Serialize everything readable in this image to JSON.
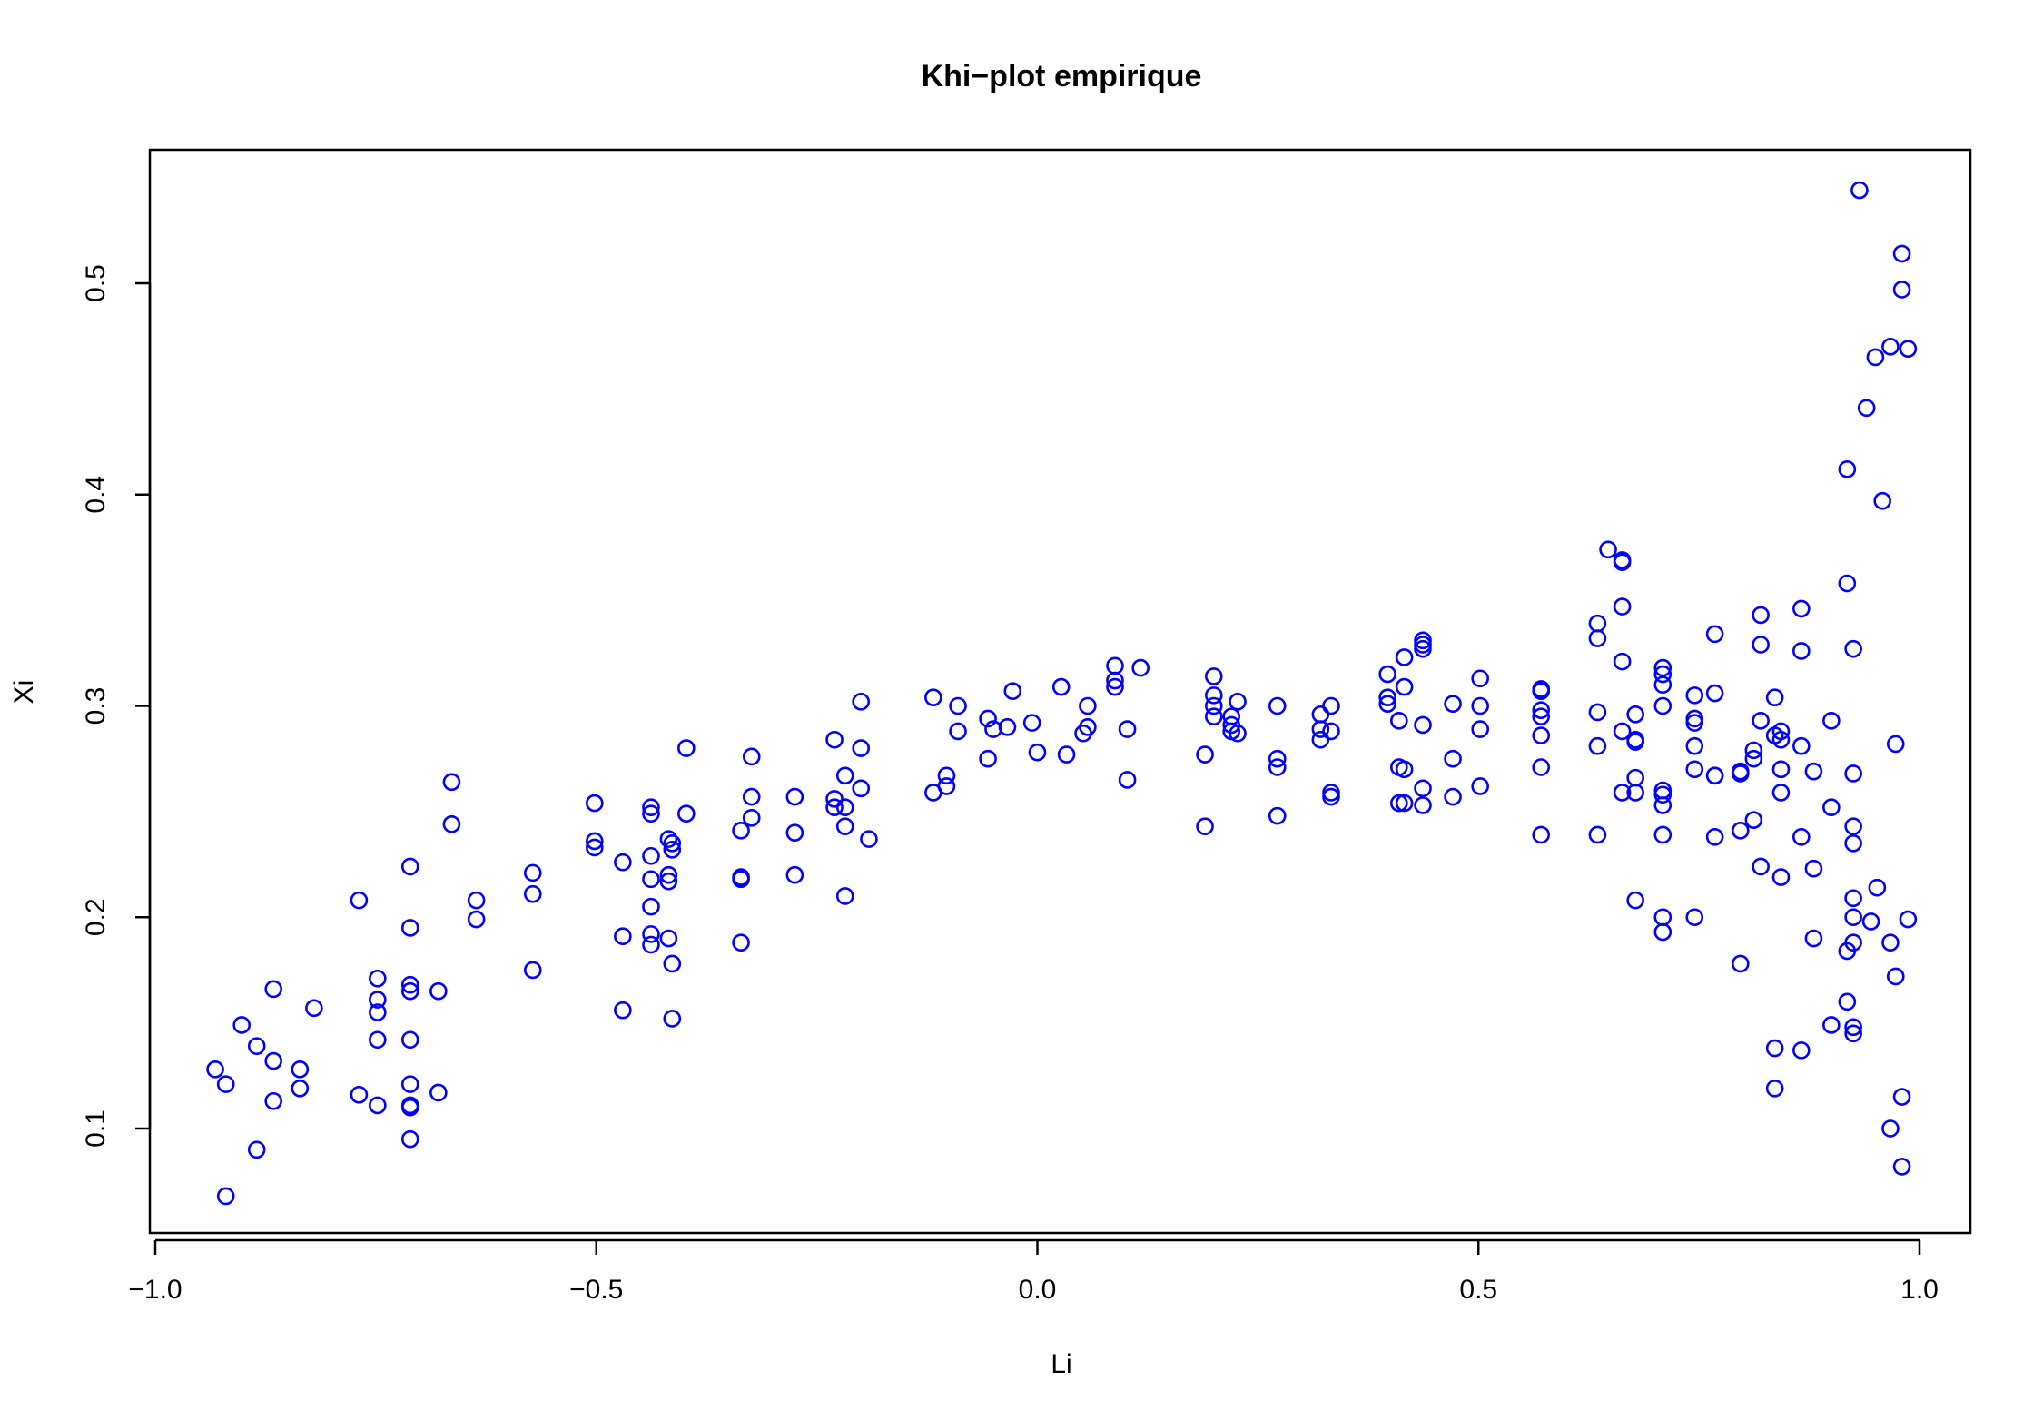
{
  "chart_data": {
    "type": "scatter",
    "title": "Khi−plot empirique",
    "xlabel": "Li",
    "ylabel": "Xi",
    "xlim": [
      -1.0,
      1.0
    ],
    "ylim": [
      0.05,
      0.55
    ],
    "xticks": [
      -1.0,
      -0.5,
      0.0,
      0.5,
      1.0
    ],
    "xtick_labels": [
      "−1.0",
      "−0.5",
      "0.0",
      "0.5",
      "1.0"
    ],
    "yticks": [
      0.1,
      0.2,
      0.3,
      0.4,
      0.5
    ],
    "ytick_labels": [
      "0.1",
      "0.2",
      "0.3",
      "0.4",
      "0.5"
    ],
    "grid": false,
    "marker": "open-circle",
    "color": "#0000ff",
    "points": [
      [
        -0.932,
        0.128
      ],
      [
        -0.92,
        0.121
      ],
      [
        -0.92,
        0.068
      ],
      [
        -0.902,
        0.149
      ],
      [
        -0.885,
        0.139
      ],
      [
        -0.885,
        0.09
      ],
      [
        -0.866,
        0.166
      ],
      [
        -0.866,
        0.132
      ],
      [
        -0.866,
        0.113
      ],
      [
        -0.836,
        0.128
      ],
      [
        -0.836,
        0.119
      ],
      [
        -0.82,
        0.157
      ],
      [
        -0.769,
        0.208
      ],
      [
        -0.769,
        0.116
      ],
      [
        -0.748,
        0.171
      ],
      [
        -0.748,
        0.161
      ],
      [
        -0.748,
        0.155
      ],
      [
        -0.748,
        0.142
      ],
      [
        -0.748,
        0.111
      ],
      [
        -0.711,
        0.224
      ],
      [
        -0.711,
        0.195
      ],
      [
        -0.711,
        0.168
      ],
      [
        -0.711,
        0.165
      ],
      [
        -0.711,
        0.142
      ],
      [
        -0.711,
        0.121
      ],
      [
        -0.711,
        0.111
      ],
      [
        -0.711,
        0.11
      ],
      [
        -0.711,
        0.095
      ],
      [
        -0.679,
        0.165
      ],
      [
        -0.679,
        0.117
      ],
      [
        -0.664,
        0.264
      ],
      [
        -0.664,
        0.244
      ],
      [
        -0.636,
        0.208
      ],
      [
        -0.636,
        0.199
      ],
      [
        -0.572,
        0.221
      ],
      [
        -0.572,
        0.211
      ],
      [
        -0.572,
        0.175
      ],
      [
        -0.502,
        0.254
      ],
      [
        -0.502,
        0.236
      ],
      [
        -0.502,
        0.233
      ],
      [
        -0.47,
        0.226
      ],
      [
        -0.47,
        0.191
      ],
      [
        -0.47,
        0.156
      ],
      [
        -0.438,
        0.252
      ],
      [
        -0.438,
        0.249
      ],
      [
        -0.438,
        0.229
      ],
      [
        -0.438,
        0.218
      ],
      [
        -0.438,
        0.205
      ],
      [
        -0.438,
        0.192
      ],
      [
        -0.438,
        0.187
      ],
      [
        -0.418,
        0.237
      ],
      [
        -0.418,
        0.22
      ],
      [
        -0.418,
        0.217
      ],
      [
        -0.418,
        0.19
      ],
      [
        -0.414,
        0.235
      ],
      [
        -0.414,
        0.232
      ],
      [
        -0.414,
        0.178
      ],
      [
        -0.414,
        0.152
      ],
      [
        -0.398,
        0.28
      ],
      [
        -0.398,
        0.249
      ],
      [
        -0.336,
        0.241
      ],
      [
        -0.336,
        0.219
      ],
      [
        -0.336,
        0.218
      ],
      [
        -0.336,
        0.188
      ],
      [
        -0.324,
        0.276
      ],
      [
        -0.324,
        0.257
      ],
      [
        -0.324,
        0.247
      ],
      [
        -0.275,
        0.257
      ],
      [
        -0.275,
        0.24
      ],
      [
        -0.275,
        0.22
      ],
      [
        -0.23,
        0.284
      ],
      [
        -0.23,
        0.256
      ],
      [
        -0.23,
        0.252
      ],
      [
        -0.218,
        0.267
      ],
      [
        -0.218,
        0.252
      ],
      [
        -0.218,
        0.243
      ],
      [
        -0.218,
        0.21
      ],
      [
        -0.2,
        0.302
      ],
      [
        -0.2,
        0.28
      ],
      [
        -0.2,
        0.261
      ],
      [
        -0.191,
        0.237
      ],
      [
        -0.118,
        0.304
      ],
      [
        -0.118,
        0.259
      ],
      [
        -0.103,
        0.267
      ],
      [
        -0.103,
        0.262
      ],
      [
        -0.09,
        0.3
      ],
      [
        -0.09,
        0.288
      ],
      [
        -0.056,
        0.294
      ],
      [
        -0.056,
        0.275
      ],
      [
        -0.05,
        0.289
      ],
      [
        -0.034,
        0.29
      ],
      [
        -0.028,
        0.307
      ],
      [
        -0.006,
        0.292
      ],
      [
        0.0,
        0.278
      ],
      [
        0.027,
        0.309
      ],
      [
        0.033,
        0.277
      ],
      [
        0.052,
        0.287
      ],
      [
        0.057,
        0.29
      ],
      [
        0.057,
        0.3
      ],
      [
        0.088,
        0.319
      ],
      [
        0.088,
        0.312
      ],
      [
        0.088,
        0.309
      ],
      [
        0.102,
        0.289
      ],
      [
        0.102,
        0.265
      ],
      [
        0.117,
        0.318
      ],
      [
        0.19,
        0.277
      ],
      [
        0.19,
        0.243
      ],
      [
        0.2,
        0.314
      ],
      [
        0.2,
        0.305
      ],
      [
        0.2,
        0.3
      ],
      [
        0.2,
        0.295
      ],
      [
        0.22,
        0.295
      ],
      [
        0.22,
        0.291
      ],
      [
        0.22,
        0.288
      ],
      [
        0.227,
        0.302
      ],
      [
        0.227,
        0.287
      ],
      [
        0.272,
        0.3
      ],
      [
        0.272,
        0.275
      ],
      [
        0.272,
        0.271
      ],
      [
        0.272,
        0.248
      ],
      [
        0.321,
        0.296
      ],
      [
        0.321,
        0.289
      ],
      [
        0.321,
        0.284
      ],
      [
        0.333,
        0.3
      ],
      [
        0.333,
        0.288
      ],
      [
        0.333,
        0.259
      ],
      [
        0.333,
        0.257
      ],
      [
        0.397,
        0.315
      ],
      [
        0.397,
        0.304
      ],
      [
        0.397,
        0.301
      ],
      [
        0.41,
        0.293
      ],
      [
        0.41,
        0.271
      ],
      [
        0.41,
        0.254
      ],
      [
        0.416,
        0.323
      ],
      [
        0.416,
        0.309
      ],
      [
        0.416,
        0.27
      ],
      [
        0.416,
        0.254
      ],
      [
        0.437,
        0.331
      ],
      [
        0.437,
        0.329
      ],
      [
        0.437,
        0.327
      ],
      [
        0.437,
        0.291
      ],
      [
        0.437,
        0.261
      ],
      [
        0.437,
        0.253
      ],
      [
        0.471,
        0.301
      ],
      [
        0.471,
        0.275
      ],
      [
        0.471,
        0.257
      ],
      [
        0.502,
        0.313
      ],
      [
        0.502,
        0.3
      ],
      [
        0.502,
        0.289
      ],
      [
        0.502,
        0.262
      ],
      [
        0.571,
        0.308
      ],
      [
        0.571,
        0.307
      ],
      [
        0.571,
        0.298
      ],
      [
        0.571,
        0.295
      ],
      [
        0.571,
        0.286
      ],
      [
        0.571,
        0.271
      ],
      [
        0.571,
        0.239
      ],
      [
        0.635,
        0.339
      ],
      [
        0.635,
        0.332
      ],
      [
        0.635,
        0.297
      ],
      [
        0.635,
        0.281
      ],
      [
        0.635,
        0.239
      ],
      [
        0.647,
        0.374
      ],
      [
        0.663,
        0.369
      ],
      [
        0.663,
        0.368
      ],
      [
        0.663,
        0.347
      ],
      [
        0.663,
        0.321
      ],
      [
        0.663,
        0.288
      ],
      [
        0.663,
        0.259
      ],
      [
        0.678,
        0.296
      ],
      [
        0.678,
        0.284
      ],
      [
        0.678,
        0.283
      ],
      [
        0.678,
        0.266
      ],
      [
        0.678,
        0.259
      ],
      [
        0.678,
        0.208
      ],
      [
        0.709,
        0.318
      ],
      [
        0.709,
        0.315
      ],
      [
        0.709,
        0.31
      ],
      [
        0.709,
        0.3
      ],
      [
        0.709,
        0.26
      ],
      [
        0.709,
        0.258
      ],
      [
        0.709,
        0.253
      ],
      [
        0.709,
        0.239
      ],
      [
        0.709,
        0.2
      ],
      [
        0.709,
        0.193
      ],
      [
        0.745,
        0.305
      ],
      [
        0.745,
        0.294
      ],
      [
        0.745,
        0.292
      ],
      [
        0.745,
        0.281
      ],
      [
        0.745,
        0.27
      ],
      [
        0.745,
        0.2
      ],
      [
        0.768,
        0.334
      ],
      [
        0.768,
        0.306
      ],
      [
        0.768,
        0.267
      ],
      [
        0.768,
        0.267
      ],
      [
        0.768,
        0.238
      ],
      [
        0.797,
        0.269
      ],
      [
        0.797,
        0.268
      ],
      [
        0.797,
        0.241
      ],
      [
        0.797,
        0.178
      ],
      [
        0.812,
        0.279
      ],
      [
        0.812,
        0.275
      ],
      [
        0.812,
        0.246
      ],
      [
        0.82,
        0.343
      ],
      [
        0.82,
        0.329
      ],
      [
        0.82,
        0.293
      ],
      [
        0.82,
        0.224
      ],
      [
        0.836,
        0.304
      ],
      [
        0.836,
        0.286
      ],
      [
        0.836,
        0.138
      ],
      [
        0.836,
        0.119
      ],
      [
        0.843,
        0.288
      ],
      [
        0.843,
        0.284
      ],
      [
        0.843,
        0.27
      ],
      [
        0.843,
        0.259
      ],
      [
        0.843,
        0.219
      ],
      [
        0.866,
        0.346
      ],
      [
        0.866,
        0.326
      ],
      [
        0.866,
        0.281
      ],
      [
        0.866,
        0.238
      ],
      [
        0.866,
        0.137
      ],
      [
        0.88,
        0.269
      ],
      [
        0.88,
        0.223
      ],
      [
        0.88,
        0.19
      ],
      [
        0.9,
        0.293
      ],
      [
        0.9,
        0.252
      ],
      [
        0.9,
        0.149
      ],
      [
        0.918,
        0.412
      ],
      [
        0.918,
        0.358
      ],
      [
        0.918,
        0.184
      ],
      [
        0.918,
        0.16
      ],
      [
        0.925,
        0.327
      ],
      [
        0.925,
        0.268
      ],
      [
        0.925,
        0.243
      ],
      [
        0.925,
        0.235
      ],
      [
        0.925,
        0.209
      ],
      [
        0.925,
        0.2
      ],
      [
        0.925,
        0.188
      ],
      [
        0.925,
        0.148
      ],
      [
        0.925,
        0.145
      ],
      [
        0.932,
        0.544
      ],
      [
        0.94,
        0.441
      ],
      [
        0.945,
        0.198
      ],
      [
        0.95,
        0.465
      ],
      [
        0.952,
        0.214
      ],
      [
        0.958,
        0.397
      ],
      [
        0.967,
        0.47
      ],
      [
        0.967,
        0.188
      ],
      [
        0.967,
        0.1
      ],
      [
        0.973,
        0.282
      ],
      [
        0.973,
        0.172
      ],
      [
        0.98,
        0.514
      ],
      [
        0.98,
        0.497
      ],
      [
        0.98,
        0.115
      ],
      [
        0.98,
        0.082
      ],
      [
        0.987,
        0.469
      ],
      [
        0.987,
        0.199
      ]
    ]
  }
}
